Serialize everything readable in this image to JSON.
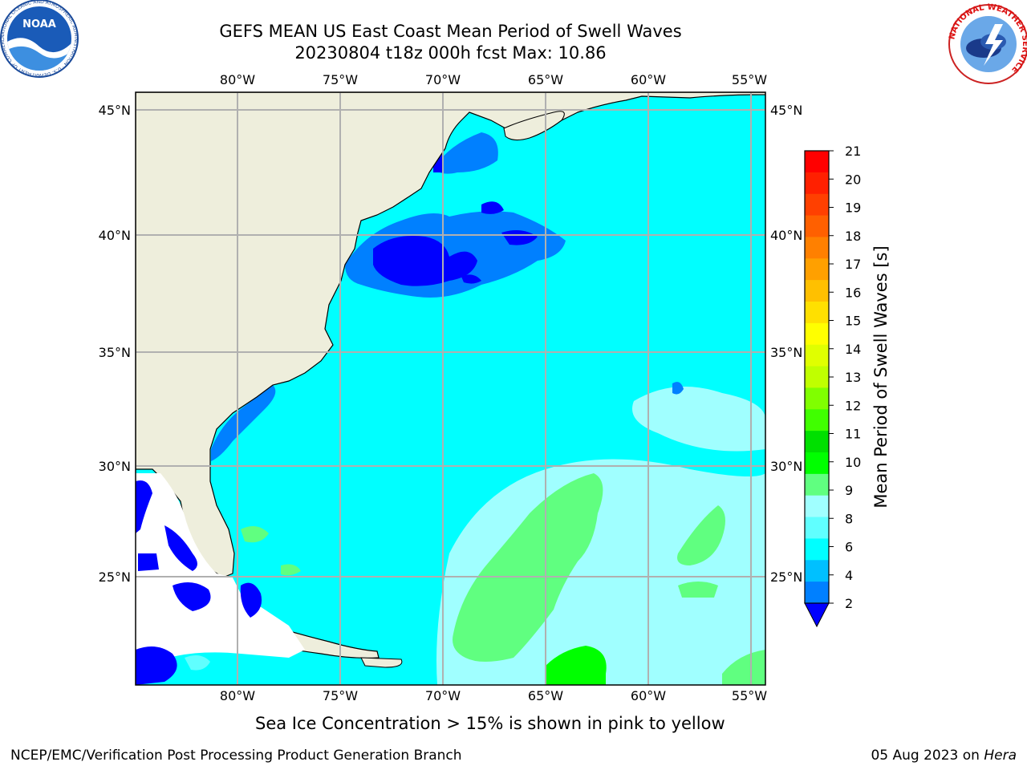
{
  "header": {
    "title_line1": "GEFS MEAN US East Coast Mean Period of Swell Waves",
    "title_line2": "20230804 t18z 000h fcst   Max: 10.86"
  },
  "logos": {
    "left": {
      "name": "noaa-logo",
      "text": "NOAA",
      "ring_text": "NATIONAL OCEANIC AND ATMOSPHERIC ADMINISTRATION · U.S. DEPARTMENT OF COMMERCE"
    },
    "right": {
      "name": "nws-logo",
      "ring_text": "NATIONAL WEATHER SERVICE"
    }
  },
  "map": {
    "lon_labels": [
      "80°W",
      "75°W",
      "70°W",
      "65°W",
      "60°W",
      "55°W"
    ],
    "lat_labels": [
      "45°N",
      "40°N",
      "35°N",
      "30°N",
      "25°N"
    ],
    "colors": {
      "land": "#eeeedc",
      "ocean_main": "#00ffff",
      "ocean_light": "#80ffff",
      "ocean_blue": "#0080ff",
      "ocean_dark": "#0000ff",
      "green": "#40ff60",
      "bright_green": "#00ff00",
      "ice_white": "#ffffff",
      "grid": "#b0b0b0"
    }
  },
  "colorbar": {
    "label": "Mean Period of Swell Waves [s]",
    "ticks": [
      "21",
      "20",
      "19",
      "18",
      "17",
      "16",
      "15",
      "14",
      "13",
      "12",
      "11",
      "10",
      "9",
      "8",
      "6",
      "4",
      "2"
    ],
    "colors": [
      "#ff0000",
      "#ff2000",
      "#ff4000",
      "#ff6000",
      "#ff8000",
      "#ffa000",
      "#ffc000",
      "#ffe000",
      "#ffff00",
      "#e0ff00",
      "#c0ff00",
      "#80ff00",
      "#40ff00",
      "#00e000",
      "#00ff00",
      "#60ff80",
      "#a0ffff",
      "#60ffff",
      "#00ffff",
      "#00c0ff",
      "#0080ff"
    ],
    "under_color": "#0000ff"
  },
  "footer": {
    "note": "Sea Ice Concentration > 15% is shown in pink to yellow",
    "credit": "NCEP/EMC/Verification Post Processing Product Generation Branch",
    "date": "05 Aug 2023 on",
    "host": "Hera"
  }
}
